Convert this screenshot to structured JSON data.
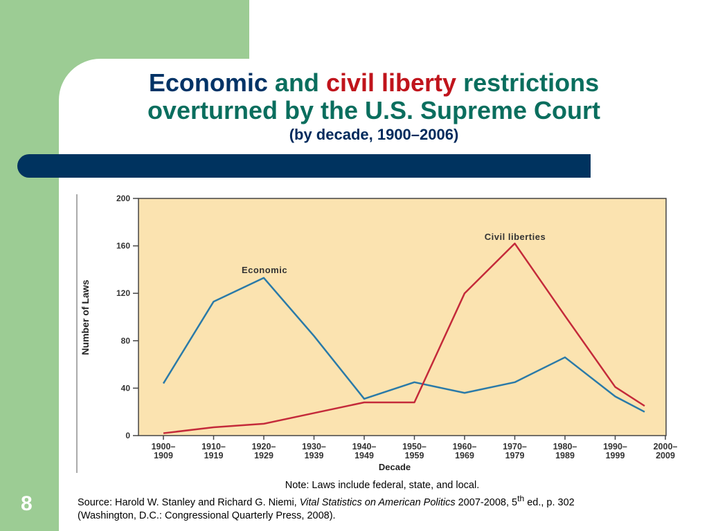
{
  "title": {
    "word_economic": "Economic",
    "word_and": "and",
    "word_civil": "civil liberty",
    "word_restrictions": "restrictions",
    "line2": "overturned by the U.S. Supreme Court",
    "subtitle": "(by decade, 1900–2006)"
  },
  "colors": {
    "economic": "#2a7aa8",
    "civil": "#c42a3a",
    "plot_bg": "#fbe3b0",
    "title_green": "#0a6e5e",
    "title_navy": "#003366",
    "title_red": "#c0141c"
  },
  "chart_data": {
    "type": "line",
    "ylabel": "Number of Laws",
    "xlabel": "Decade",
    "ylim": [
      0,
      200
    ],
    "yticks": [
      "0",
      "40",
      "80",
      "120",
      "160",
      "200"
    ],
    "categories": [
      [
        "1900–",
        "1909"
      ],
      [
        "1910–",
        "1919"
      ],
      [
        "1920–",
        "1929"
      ],
      [
        "1930–",
        "1939"
      ],
      [
        "1940–",
        "1949"
      ],
      [
        "1950–",
        "1959"
      ],
      [
        "1960–",
        "1969"
      ],
      [
        "1970–",
        "1979"
      ],
      [
        "1980–",
        "1989"
      ],
      [
        "1990–",
        "1999"
      ],
      [
        "2000–",
        "2009"
      ]
    ],
    "series": [
      {
        "name": "Economic",
        "color": "#2a7aa8",
        "values": [
          44,
          113,
          133,
          84,
          31,
          45,
          36,
          45,
          66,
          33,
          20
        ]
      },
      {
        "name": "Civil liberties",
        "color": "#c42a3a",
        "values": [
          2,
          7,
          10,
          19,
          28,
          28,
          120,
          162,
          101,
          41,
          25
        ]
      }
    ],
    "grid": false
  },
  "notes": {
    "line1": "Note: Laws include federal, state, and local.",
    "source_prefix": "Source: Harold W. Stanley and Richard G. Niemi, ",
    "source_italic": "Vital Statistics on American Politics",
    "source_mid": " 2007-2008, 5",
    "source_sup": "th",
    "source_suffix": " ed., p. 302",
    "line3": "(Washington, D.C.: Congressional Quarterly Press, 2008)."
  },
  "slide_number": "8"
}
